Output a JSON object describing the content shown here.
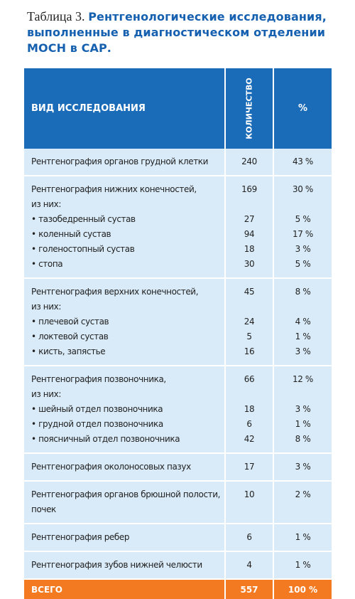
{
  "caption": {
    "number": "Таблица 3.",
    "title": "Рентгенологические исследования, выполненные в диагностическом отделении МОСН в САР."
  },
  "table": {
    "headers": {
      "type": "ВИД ИССЛЕДОВАНИЯ",
      "count": "КОЛИЧЕСТВО",
      "percent": "%"
    },
    "groups": [
      {
        "lines": [
          {
            "label": "Рентгенография органов грудной клетки",
            "count": "240",
            "percent": "43 %"
          }
        ]
      },
      {
        "lines": [
          {
            "label": "Рентгенография нижних конечностей,",
            "count": "169",
            "percent": "30 %"
          },
          {
            "label": "из них:",
            "count": "",
            "percent": ""
          },
          {
            "label": "тазобедренный сустав",
            "count": "27",
            "percent": "5 %",
            "sub": true
          },
          {
            "label": "коленный сустав",
            "count": "94",
            "percent": "17 %",
            "sub": true
          },
          {
            "label": "голеностопный сустав",
            "count": "18",
            "percent": "3 %",
            "sub": true
          },
          {
            "label": "стопа",
            "count": "30",
            "percent": "5 %",
            "sub": true
          }
        ]
      },
      {
        "lines": [
          {
            "label": "Рентгенография верхних конечностей,",
            "count": "45",
            "percent": "8 %"
          },
          {
            "label": "из них:",
            "count": "",
            "percent": ""
          },
          {
            "label": "плечевой сустав",
            "count": "24",
            "percent": "4 %",
            "sub": true
          },
          {
            "label": "локтевой сустав",
            "count": "5",
            "percent": "1 %",
            "sub": true
          },
          {
            "label": "кисть, запястье",
            "count": "16",
            "percent": "3 %",
            "sub": true
          }
        ]
      },
      {
        "lines": [
          {
            "label": "Рентгенография позвоночника,",
            "count": "66",
            "percent": "12 %"
          },
          {
            "label": "из них:",
            "count": "",
            "percent": ""
          },
          {
            "label": "шейный отдел позвоночника",
            "count": "18",
            "percent": "3 %",
            "sub": true
          },
          {
            "label": "грудной отдел позвоночника",
            "count": "6",
            "percent": "1 %",
            "sub": true
          },
          {
            "label": "поясничный отдел позвоночника",
            "count": "42",
            "percent": "8 %",
            "sub": true
          }
        ]
      },
      {
        "lines": [
          {
            "label": "Рентгенография околоносовых пазух",
            "count": "17",
            "percent": "3 %"
          }
        ]
      },
      {
        "lines": [
          {
            "label": "Рентгенография органов брюшной полости,",
            "count": "10",
            "percent": "2 %"
          },
          {
            "label": "почек",
            "count": "",
            "percent": ""
          }
        ]
      },
      {
        "lines": [
          {
            "label": "Рентгенография ребер",
            "count": "6",
            "percent": "1 %"
          }
        ]
      },
      {
        "lines": [
          {
            "label": "Рентгенография зубов нижней челюсти",
            "count": "4",
            "percent": "1 %"
          }
        ]
      }
    ],
    "total": {
      "label": "ВСЕГО",
      "count": "557",
      "percent": "100 %"
    }
  },
  "colors": {
    "header_bg": "#1a6cb9",
    "row_bg": "#d9ebf8",
    "total_bg": "#f47a22",
    "title_color": "#1660b0"
  }
}
